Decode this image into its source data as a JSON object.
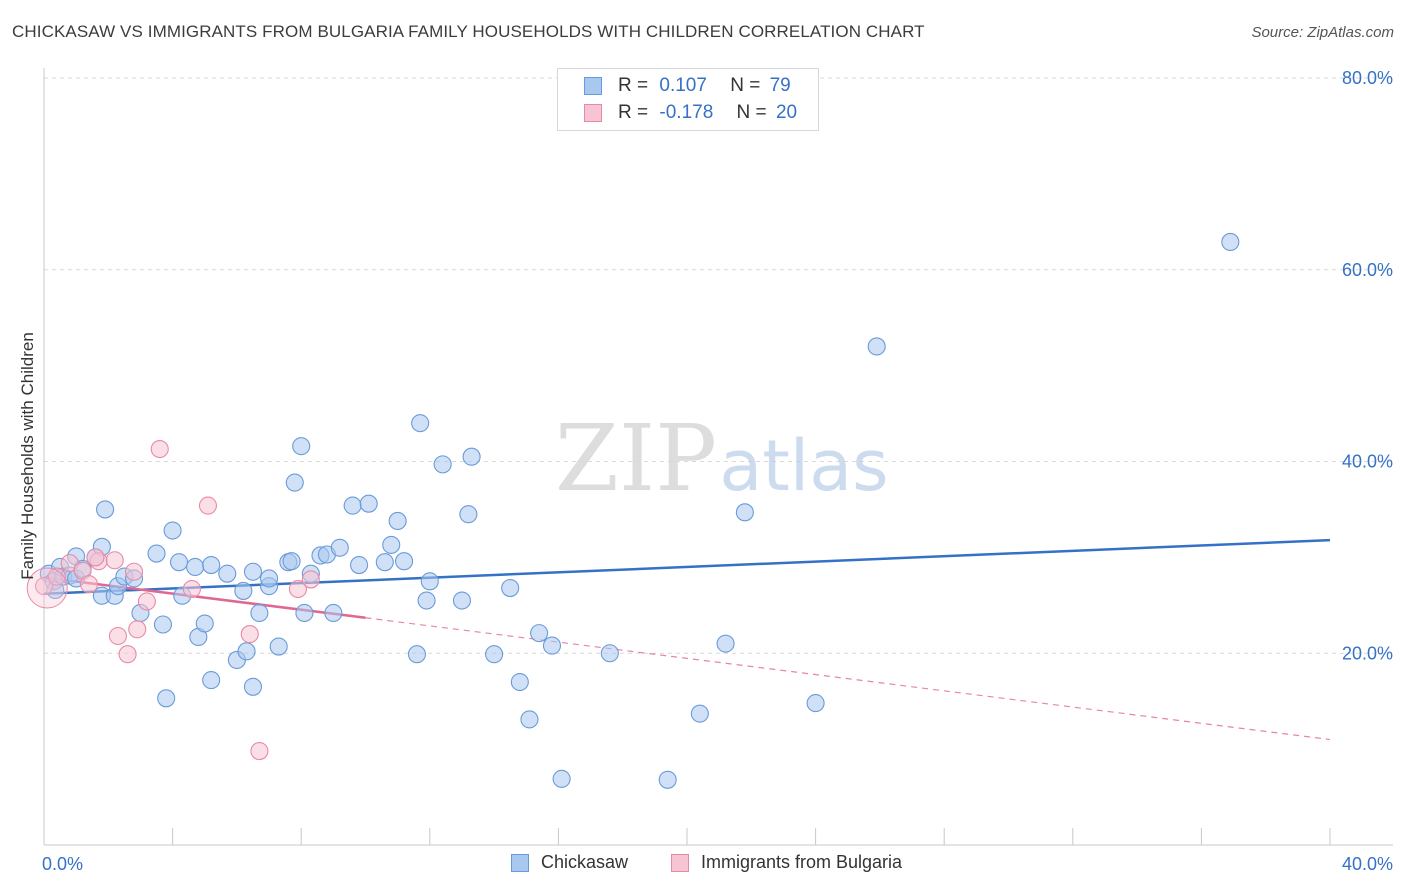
{
  "title": "CHICKASAW VS IMMIGRANTS FROM BULGARIA FAMILY HOUSEHOLDS WITH CHILDREN CORRELATION CHART",
  "source": "Source: ZipAtlas.com",
  "watermark": {
    "zip": "ZIP",
    "atlas": "atlas"
  },
  "legend_top": {
    "rows": [
      {
        "r_label": "R =",
        "r_value": "0.107",
        "n_label": "N =",
        "n_value": "79",
        "color": "#a9c8f0",
        "border": "#6a9bd8"
      },
      {
        "r_label": "R =",
        "r_value": "-0.178",
        "n_label": "N =",
        "n_value": "20",
        "color": "#f7c4d3",
        "border": "#e88aa6"
      }
    ]
  },
  "legend_bottom": [
    {
      "label": "Chickasaw",
      "color": "#a9c8f0",
      "border": "#6a9bd8"
    },
    {
      "label": "Immigrants from Bulgaria",
      "color": "#f7c4d3",
      "border": "#e88aa6"
    }
  ],
  "chart_data": {
    "type": "scatter",
    "title": "CHICKASAW VS IMMIGRANTS FROM BULGARIA FAMILY HOUSEHOLDS WITH CHILDREN CORRELATION CHART",
    "xlabel": "",
    "ylabel": "Family Households with Children",
    "xlim": [
      0,
      40
    ],
    "ylim": [
      0,
      80
    ],
    "x_tick_labels": [
      {
        "value": 0,
        "label": "0.0%"
      },
      {
        "value": 40,
        "label": "40.0%"
      }
    ],
    "y_tick_labels": [
      {
        "value": 20,
        "label": "20.0%"
      },
      {
        "value": 40,
        "label": "40.0%"
      },
      {
        "value": 60,
        "label": "60.0%"
      },
      {
        "value": 80,
        "label": "80.0%"
      }
    ],
    "x_minor_ticks": [
      0,
      4,
      8,
      12,
      16,
      20,
      24,
      28,
      32,
      36,
      40
    ],
    "y_gridlines": [
      20,
      40,
      60,
      80
    ],
    "series": [
      {
        "name": "Chickasaw",
        "color": "#a9c8f0",
        "stroke": "#6a9bd8",
        "line_color": "#3571c6",
        "trend": {
          "x0": 0,
          "y0": 26.2,
          "x1": 40,
          "y1": 31.8
        },
        "points": [
          [
            0.15,
            28.3
          ],
          [
            0.3,
            27.5
          ],
          [
            0.35,
            26.6
          ],
          [
            0.5,
            29.0
          ],
          [
            0.6,
            28.0
          ],
          [
            0.8,
            28.1
          ],
          [
            1.0,
            27.8
          ],
          [
            1.0,
            30.1
          ],
          [
            1.2,
            28.8
          ],
          [
            1.6,
            30.0
          ],
          [
            1.9,
            35.0
          ],
          [
            1.8,
            26.0
          ],
          [
            2.2,
            26.0
          ],
          [
            2.3,
            27.0
          ],
          [
            1.8,
            31.1
          ],
          [
            2.5,
            28.0
          ],
          [
            2.8,
            27.8
          ],
          [
            3.0,
            24.2
          ],
          [
            3.5,
            30.4
          ],
          [
            3.7,
            23.0
          ],
          [
            3.8,
            15.3
          ],
          [
            4.0,
            32.8
          ],
          [
            4.2,
            29.5
          ],
          [
            4.3,
            26.0
          ],
          [
            4.7,
            29.0
          ],
          [
            4.8,
            21.7
          ],
          [
            5.0,
            23.1
          ],
          [
            5.2,
            17.2
          ],
          [
            5.2,
            29.2
          ],
          [
            5.7,
            28.3
          ],
          [
            6.0,
            19.3
          ],
          [
            6.2,
            26.5
          ],
          [
            6.3,
            20.2
          ],
          [
            6.5,
            28.5
          ],
          [
            6.5,
            16.5
          ],
          [
            6.7,
            24.2
          ],
          [
            7.0,
            27.0
          ],
          [
            7.0,
            27.8
          ],
          [
            7.3,
            20.7
          ],
          [
            7.6,
            29.5
          ],
          [
            7.7,
            29.6
          ],
          [
            7.8,
            37.8
          ],
          [
            8.0,
            41.6
          ],
          [
            8.1,
            24.2
          ],
          [
            8.3,
            28.3
          ],
          [
            8.6,
            30.2
          ],
          [
            8.8,
            30.3
          ],
          [
            9.0,
            24.2
          ],
          [
            9.2,
            31.0
          ],
          [
            9.6,
            35.4
          ],
          [
            9.8,
            29.2
          ],
          [
            10.1,
            35.6
          ],
          [
            10.6,
            29.5
          ],
          [
            10.8,
            31.3
          ],
          [
            11.0,
            33.8
          ],
          [
            11.2,
            29.6
          ],
          [
            11.6,
            19.9
          ],
          [
            11.7,
            44.0
          ],
          [
            11.9,
            25.5
          ],
          [
            12.0,
            27.5
          ],
          [
            12.4,
            39.7
          ],
          [
            13.0,
            25.5
          ],
          [
            13.2,
            34.5
          ],
          [
            13.3,
            40.5
          ],
          [
            14.0,
            19.9
          ],
          [
            14.5,
            26.8
          ],
          [
            14.8,
            17.0
          ],
          [
            15.1,
            13.1
          ],
          [
            15.4,
            22.1
          ],
          [
            15.8,
            20.8
          ],
          [
            16.1,
            6.9
          ],
          [
            17.6,
            20.0
          ],
          [
            19.4,
            6.8
          ],
          [
            20.4,
            13.7
          ],
          [
            21.2,
            21.0
          ],
          [
            21.8,
            34.7
          ],
          [
            24.0,
            14.8
          ],
          [
            25.9,
            52.0
          ],
          [
            36.9,
            62.9
          ]
        ]
      },
      {
        "name": "Immigrants from Bulgaria",
        "color": "#f7c4d3",
        "stroke": "#e88aa6",
        "line_color": "#e0678f",
        "trend": {
          "x0": 0,
          "y0": 27.9,
          "x1": 10,
          "y1": 23.7
        },
        "trend_dashed": {
          "x0": 10,
          "y0": 23.7,
          "x1": 40,
          "y1": 11.0
        },
        "points": [
          [
            0.0,
            27.0
          ],
          [
            0.4,
            28.0
          ],
          [
            0.8,
            29.4
          ],
          [
            1.2,
            28.6
          ],
          [
            1.4,
            27.2
          ],
          [
            1.7,
            29.6
          ],
          [
            2.2,
            29.7
          ],
          [
            2.8,
            28.5
          ],
          [
            3.2,
            25.4
          ],
          [
            3.6,
            41.3
          ],
          [
            4.6,
            26.7
          ],
          [
            5.1,
            35.4
          ],
          [
            6.4,
            22.0
          ],
          [
            6.7,
            9.8
          ],
          [
            7.9,
            26.7
          ],
          [
            8.3,
            27.7
          ],
          [
            2.3,
            21.8
          ],
          [
            2.6,
            19.9
          ],
          [
            2.9,
            22.5
          ],
          [
            1.6,
            30.0
          ]
        ]
      }
    ]
  }
}
